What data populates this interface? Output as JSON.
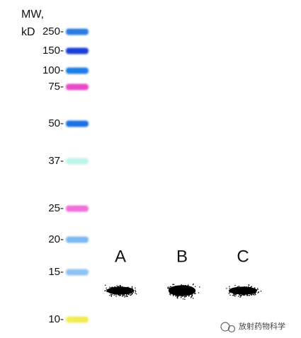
{
  "header": {
    "line1": "MW,",
    "line2": "kD"
  },
  "ladder": [
    "250-",
    "150-",
    "100-",
    "75-",
    "50-",
    "37-",
    "25-",
    "20-",
    "15-",
    "10-"
  ],
  "lanes": [
    "A",
    "B",
    "C"
  ],
  "watermark": "放射药物科学"
}
